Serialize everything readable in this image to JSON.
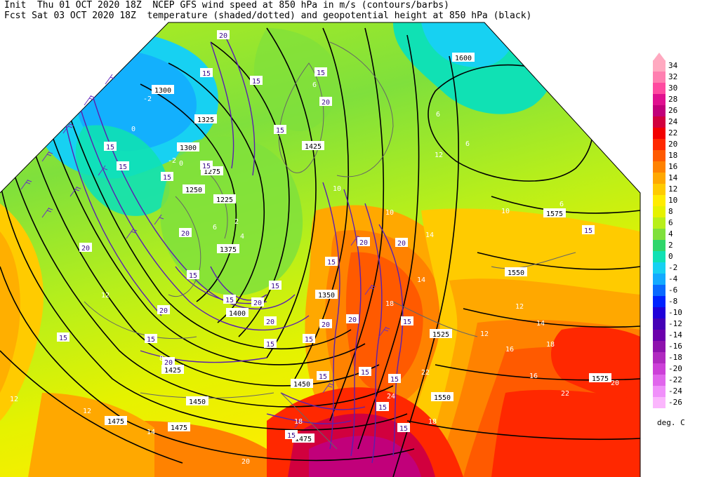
{
  "header": {
    "line1": "Init  Thu 01 OCT 2020 18Z  NCEP GFS wind speed at 850 hPa in m/s (contours/barbs)",
    "line2": "Fcst Sat 03 OCT 2020 18Z  temperature (shaded/dotted) and geopotential height at 850 hPa (black)"
  },
  "legend": {
    "units": "deg. C",
    "levels": [
      {
        "label": "34",
        "color": "#ffa9c0"
      },
      {
        "label": "32",
        "color": "#ff7fb0"
      },
      {
        "label": "30",
        "color": "#ff4aa0"
      },
      {
        "label": "28",
        "color": "#e0108f"
      },
      {
        "label": "26",
        "color": "#c1007a"
      },
      {
        "label": "24",
        "color": "#d1003e"
      },
      {
        "label": "22",
        "color": "#f20000"
      },
      {
        "label": "20",
        "color": "#ff2800"
      },
      {
        "label": "18",
        "color": "#ff5a00"
      },
      {
        "label": "16",
        "color": "#ff8200"
      },
      {
        "label": "14",
        "color": "#ffa800"
      },
      {
        "label": "12",
        "color": "#ffcb00"
      },
      {
        "label": "10",
        "color": "#ffec00"
      },
      {
        "label": "8",
        "color": "#e5f200"
      },
      {
        "label": "6",
        "color": "#b8ef1a"
      },
      {
        "label": "4",
        "color": "#7fe03c"
      },
      {
        "label": "2",
        "color": "#30d66b"
      },
      {
        "label": "0",
        "color": "#10e1b4"
      },
      {
        "label": "-2",
        "color": "#17d1f2"
      },
      {
        "label": "-4",
        "color": "#13aaff"
      },
      {
        "label": "-6",
        "color": "#0a69ff"
      },
      {
        "label": "-8",
        "color": "#0022ff"
      },
      {
        "label": "-10",
        "color": "#2000d9"
      },
      {
        "label": "-12",
        "color": "#4500b6"
      },
      {
        "label": "-14",
        "color": "#6c00ac"
      },
      {
        "label": "-16",
        "color": "#8e12ad"
      },
      {
        "label": "-18",
        "color": "#b02ac0"
      },
      {
        "label": "-20",
        "color": "#cc40d8"
      },
      {
        "label": "-22",
        "color": "#e066ec"
      },
      {
        "label": "-24",
        "color": "#f090fa"
      },
      {
        "label": "-26",
        "color": "#fbb6fd"
      }
    ]
  },
  "map": {
    "height_labels": [
      "1300",
      "1325",
      "1300",
      "1275",
      "1250",
      "1225",
      "1600",
      "1575",
      "1550",
      "1525",
      "1575",
      "1550",
      "1450",
      "1425",
      "1450",
      "1475",
      "1475",
      "1475",
      "1375",
      "1350",
      "1400",
      "1425"
    ],
    "wind_labels": [
      "20",
      "15",
      "15",
      "15",
      "20",
      "20",
      "15",
      "20",
      "15",
      "15",
      "15",
      "20",
      "15",
      "15",
      "20",
      "15",
      "20",
      "15",
      "15",
      "20",
      "15",
      "15",
      "15",
      "15",
      "20",
      "15",
      "15",
      "15",
      "15",
      "15",
      "15",
      "15",
      "20",
      "20",
      "15",
      "20"
    ],
    "temp_labels": [
      "-2",
      "0",
      "0",
      "2",
      "-2",
      "4",
      "6",
      "8",
      "6",
      "6",
      "6",
      "6",
      "10",
      "12",
      "14",
      "12",
      "16",
      "18",
      "20",
      "22",
      "18",
      "14",
      "10",
      "12",
      "16",
      "14",
      "20",
      "24",
      "22",
      "18",
      "18",
      "12",
      "12",
      "10",
      "14",
      "12"
    ]
  }
}
